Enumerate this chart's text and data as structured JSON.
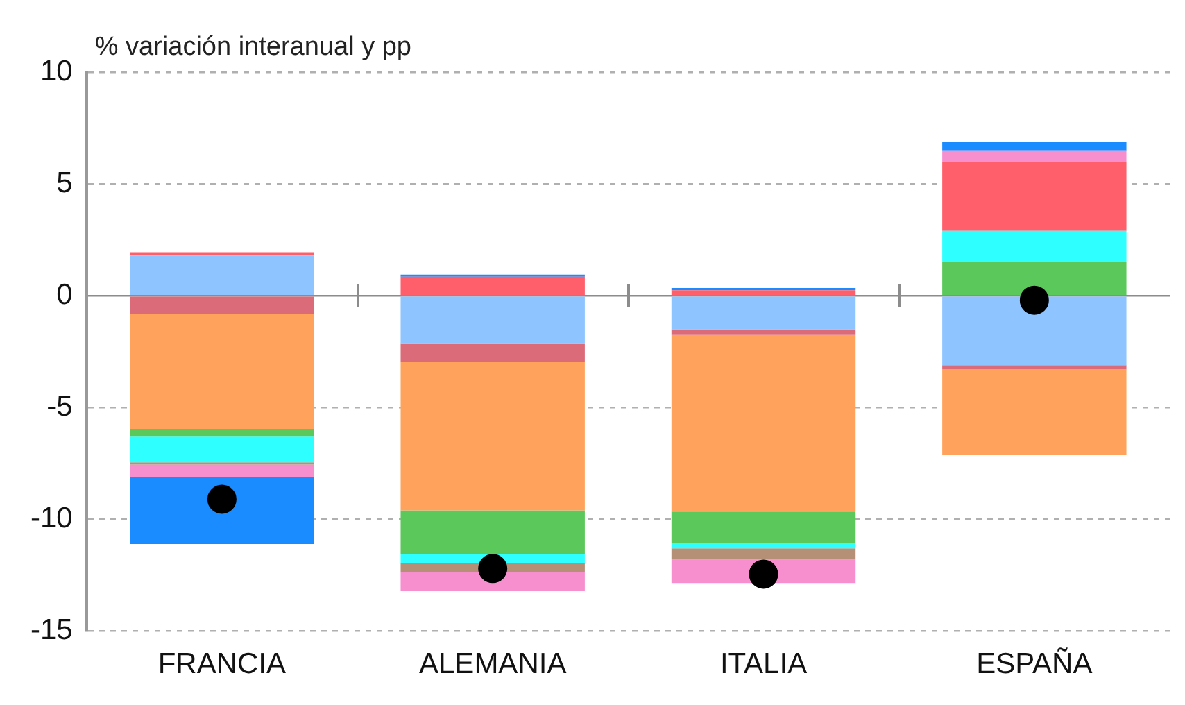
{
  "chart_data": {
    "type": "bar",
    "stacked": true,
    "ylabel": "% variación interanual y pp",
    "categories": [
      "FRANCIA",
      "ALEMANIA",
      "ITALIA",
      "ESPAÑA"
    ],
    "ylim": [
      -15,
      10
    ],
    "yticks": [
      -15,
      -10,
      -5,
      0,
      5,
      10
    ],
    "grid": "y",
    "legend": false,
    "series": [
      {
        "color": "#8ec4ff",
        "values": [
          1.8,
          -2.15,
          -1.5,
          -3.1
        ]
      },
      {
        "color": "#db6b78",
        "values": [
          -0.8,
          -0.8,
          -0.25,
          -0.2
        ]
      },
      {
        "color": "#ffa35c",
        "values": [
          -5.15,
          -6.65,
          -7.9,
          -3.8
        ]
      },
      {
        "color": "#5ac85a",
        "values": [
          -0.35,
          -1.95,
          -1.4,
          1.5
        ]
      },
      {
        "color": "#2effff",
        "values": [
          -1.15,
          -0.4,
          -0.25,
          1.4
        ]
      },
      {
        "color": "#b59077",
        "values": [
          -0.1,
          -0.4,
          -0.5,
          null
        ]
      },
      {
        "color": "#ff5f6a",
        "values": [
          0.15,
          0.85,
          0.25,
          3.1
        ]
      },
      {
        "color": "#f78fcf",
        "values": [
          -0.55,
          -0.85,
          -1.05,
          0.5
        ]
      },
      {
        "color": "#1a8cff",
        "values": [
          -3.0,
          0.1,
          0.1,
          0.4
        ]
      },
      {
        "type": "scatter",
        "color": "#000000",
        "marker": "circle",
        "x": [
          "FRANCIA",
          "ALEMANIA",
          "ITALIA",
          "ESPAÑA"
        ],
        "values": [
          -9.1,
          -12.2,
          -12.45,
          -0.2
        ]
      }
    ]
  }
}
